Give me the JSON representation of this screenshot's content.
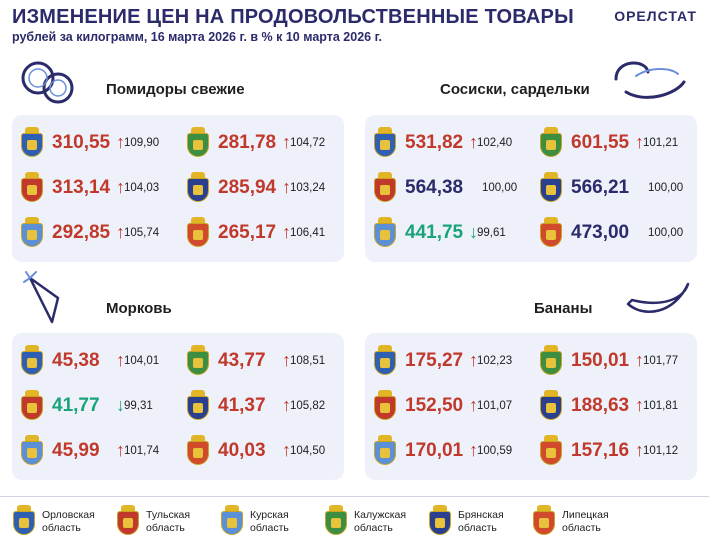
{
  "header": {
    "title": "ИЗМЕНЕНИЕ ЦЕН НА ПРОДОВОЛЬСТВЕННЫЕ ТОВАРЫ",
    "subtitle": "рублей за килограмм, 16 марта 2026 г. в % к 10 марта 2026 г.",
    "brand": "ОРЕЛСТАТ"
  },
  "colors": {
    "up": "#c0392b",
    "flat": "#2b2b6b",
    "down": "#1aa37a",
    "panel": "#eef1fa"
  },
  "regions": [
    {
      "name": "Орловская",
      "line2": "область",
      "color": "#2f5fb3"
    },
    {
      "name": "Тульская",
      "line2": "область",
      "color": "#c0392b"
    },
    {
      "name": "Курская",
      "line2": "область",
      "color": "#5b8fd6"
    },
    {
      "name": "Калужская",
      "line2": "область",
      "color": "#3e8e41"
    },
    {
      "name": "Брянская",
      "line2": "область",
      "color": "#2b3f8f"
    },
    {
      "name": "Липецкая",
      "line2": "область",
      "color": "#d04a2b"
    }
  ],
  "products": [
    {
      "label": "Помидоры свежие",
      "icon": "tomato-rings-icon",
      "cells": [
        {
          "region": 0,
          "price": "310,55",
          "pct": "109,90",
          "trend": "up"
        },
        {
          "region": 3,
          "price": "281,78",
          "pct": "104,72",
          "trend": "up"
        },
        {
          "region": 1,
          "price": "313,14",
          "pct": "104,03",
          "trend": "up"
        },
        {
          "region": 4,
          "price": "285,94",
          "pct": "103,24",
          "trend": "up"
        },
        {
          "region": 2,
          "price": "292,85",
          "pct": "105,74",
          "trend": "up"
        },
        {
          "region": 5,
          "price": "265,17",
          "pct": "106,41",
          "trend": "up"
        }
      ]
    },
    {
      "label": "Сосиски, сардельки",
      "icon": "sausage-icon",
      "cells": [
        {
          "region": 0,
          "price": "531,82",
          "pct": "102,40",
          "trend": "up"
        },
        {
          "region": 3,
          "price": "601,55",
          "pct": "101,21",
          "trend": "up"
        },
        {
          "region": 1,
          "price": "564,38",
          "pct": "100,00",
          "trend": "flat"
        },
        {
          "region": 4,
          "price": "566,21",
          "pct": "100,00",
          "trend": "flat"
        },
        {
          "region": 2,
          "price": "441,75",
          "pct": "99,61",
          "trend": "down"
        },
        {
          "region": 5,
          "price": "473,00",
          "pct": "100,00",
          "trend": "flat"
        }
      ]
    },
    {
      "label": "Морковь",
      "icon": "carrot-icon",
      "cells": [
        {
          "region": 0,
          "price": "45,38",
          "pct": "104,01",
          "trend": "up"
        },
        {
          "region": 3,
          "price": "43,77",
          "pct": "108,51",
          "trend": "up"
        },
        {
          "region": 1,
          "price": "41,77",
          "pct": "99,31",
          "trend": "down"
        },
        {
          "region": 4,
          "price": "41,37",
          "pct": "105,82",
          "trend": "up"
        },
        {
          "region": 2,
          "price": "45,99",
          "pct": "101,74",
          "trend": "up"
        },
        {
          "region": 5,
          "price": "40,03",
          "pct": "104,50",
          "trend": "up"
        }
      ]
    },
    {
      "label": "Бананы",
      "icon": "banana-icon",
      "cells": [
        {
          "region": 0,
          "price": "175,27",
          "pct": "102,23",
          "trend": "up"
        },
        {
          "region": 3,
          "price": "150,01",
          "pct": "101,77",
          "trend": "up"
        },
        {
          "region": 1,
          "price": "152,50",
          "pct": "101,07",
          "trend": "up"
        },
        {
          "region": 4,
          "price": "188,63",
          "pct": "101,81",
          "trend": "up"
        },
        {
          "region": 2,
          "price": "170,01",
          "pct": "100,59",
          "trend": "up"
        },
        {
          "region": 5,
          "price": "157,16",
          "pct": "101,12",
          "trend": "up"
        }
      ]
    }
  ]
}
